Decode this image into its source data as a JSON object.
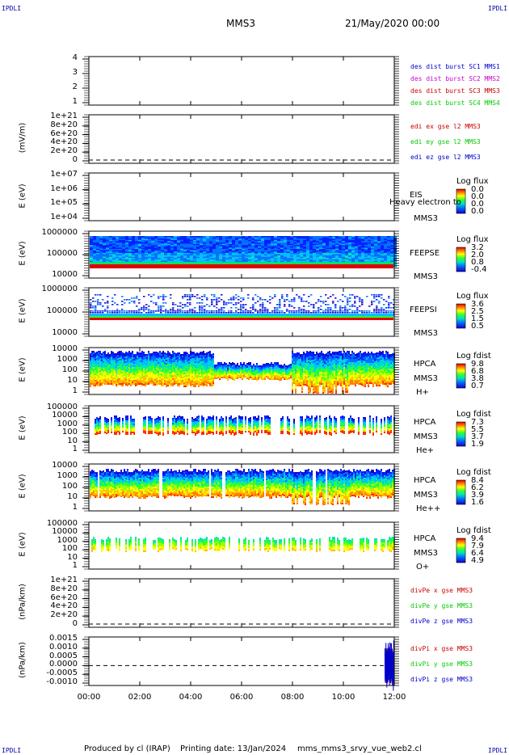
{
  "header": {
    "corner_tl": "IPDLI",
    "corner_tr": "IPDLI",
    "corner_bl": "IPDLI",
    "corner_br": "IPDLI",
    "spacecraft": "MMS3",
    "datetime": "21/May/2020 00:00"
  },
  "footer": {
    "produced": "Produced by cl (IRAP)",
    "printing": "Printing date: 13/Jan/2024",
    "script": "mms_mms3_srvy_vue_web2.cl"
  },
  "colors": {
    "black": "#000000",
    "blue": "#0000cc",
    "magenta": "#cc00cc",
    "red": "#cc0000",
    "green": "#00cc00"
  },
  "chart_data": [
    {
      "type": "line",
      "panel": "des_dist_burst",
      "ylabel": "",
      "yticks": [
        "4",
        "3",
        "2",
        "1"
      ],
      "ylim": [
        0.5,
        4.5
      ],
      "legend": [
        {
          "text": "des dist burst SC1 MMS1",
          "color": "#0000cc"
        },
        {
          "text": "des dist burst SC2 MMS2",
          "color": "#cc00cc"
        },
        {
          "text": "des dist burst SC3 MMS3",
          "color": "#cc0000"
        },
        {
          "text": "des dist burst SC4 MMS4",
          "color": "#00cc00"
        }
      ],
      "series": []
    },
    {
      "type": "line",
      "panel": "edi",
      "ylabel": "(mV/m)",
      "yticks": [
        "1e+21",
        "8e+20",
        "6e+20",
        "4e+20",
        "2e+20",
        "0"
      ],
      "ylim": [
        0,
        1e+21
      ],
      "legend": [
        {
          "text": "edi ex gse l2 MMS3",
          "color": "#cc0000"
        },
        {
          "text": "edi ey gse l2 MMS3",
          "color": "#00cc00"
        },
        {
          "text": "edi ez gse l2 MMS3",
          "color": "#0000cc"
        }
      ],
      "series": []
    },
    {
      "type": "heatmap",
      "panel": "eis",
      "ylabel": "E (eV)",
      "yticks": [
        "1e+07",
        "1e+06",
        "1e+05",
        "1e+04"
      ],
      "scale": "log",
      "ylim": [
        10000.0,
        10000000.0
      ],
      "instrument": "EIS",
      "sc": "MMS3",
      "overlay": "Heavy electron to",
      "cbar_title": "Log flux",
      "cbar_values": [
        "0.0",
        "0.0",
        "0.0",
        "0.0"
      ]
    },
    {
      "type": "heatmap",
      "panel": "feepse",
      "ylabel": "E (eV)",
      "yticks": [
        "1000000",
        "100000",
        "10000"
      ],
      "scale": "log",
      "ylim": [
        10000.0,
        1000000.0
      ],
      "instrument": "FEEPSE",
      "sc": "MMS3",
      "cbar_title": "Log flux",
      "cbar_values": [
        "3.2",
        "2.0",
        "0.8",
        "-0.4"
      ]
    },
    {
      "type": "heatmap",
      "panel": "feepsi",
      "ylabel": "E (eV)",
      "yticks": [
        "1000000",
        "100000",
        "10000"
      ],
      "scale": "log",
      "ylim": [
        10000.0,
        1000000.0
      ],
      "instrument": "FEEPSI",
      "sc": "MMS3",
      "cbar_title": "Log flux",
      "cbar_values": [
        "3.6",
        "2.5",
        "1.5",
        "0.5"
      ]
    },
    {
      "type": "heatmap",
      "panel": "hpca_h",
      "ylabel": "E (eV)",
      "yticks": [
        "10000",
        "1000",
        "100",
        "10",
        "1"
      ],
      "scale": "log",
      "ylim": [
        1,
        100000.0
      ],
      "instrument": "HPCA",
      "sc": "MMS3",
      "species": "H+",
      "cbar_title": "Log fdist",
      "cbar_values": [
        "9.8",
        "6.8",
        "3.8",
        "0.7"
      ]
    },
    {
      "type": "heatmap",
      "panel": "hpca_he",
      "ylabel": "E (eV)",
      "yticks": [
        "100000",
        "10000",
        "1000",
        "100",
        "10",
        "1"
      ],
      "scale": "log",
      "ylim": [
        1,
        100000.0
      ],
      "instrument": "HPCA",
      "sc": "MMS3",
      "species": "He+",
      "cbar_title": "Log fdist",
      "cbar_values": [
        "7.3",
        "5.5",
        "3.7",
        "1.9"
      ]
    },
    {
      "type": "heatmap",
      "panel": "hpca_hepp",
      "ylabel": "E (eV)",
      "yticks": [
        "10000",
        "1000",
        "100",
        "10",
        "1"
      ],
      "scale": "log",
      "ylim": [
        1,
        100000.0
      ],
      "instrument": "HPCA",
      "sc": "MMS3",
      "species": "He++",
      "cbar_title": "Log fdist",
      "cbar_values": [
        "8.4",
        "6.2",
        "3.9",
        "1.6"
      ]
    },
    {
      "type": "heatmap",
      "panel": "hpca_o",
      "ylabel": "E (eV)",
      "yticks": [
        "100000",
        "10000",
        "1000",
        "100",
        "10",
        "1"
      ],
      "scale": "log",
      "ylim": [
        1,
        100000.0
      ],
      "instrument": "HPCA",
      "sc": "MMS3",
      "species": "O+",
      "cbar_title": "Log fdist",
      "cbar_values": [
        "9.4",
        "7.9",
        "6.4",
        "4.9"
      ]
    },
    {
      "type": "line",
      "panel": "divpe",
      "ylabel": "(nPa/km)",
      "yticks": [
        "1e+21",
        "8e+20",
        "6e+20",
        "4e+20",
        "2e+20",
        "0"
      ],
      "ylim": [
        0,
        1e+21
      ],
      "legend": [
        {
          "text": "divPe x gse MMS3",
          "color": "#cc0000"
        },
        {
          "text": "divPe y gse MMS3",
          "color": "#00cc00"
        },
        {
          "text": "divPe z gse MMS3",
          "color": "#0000cc"
        }
      ],
      "series": []
    },
    {
      "type": "line",
      "panel": "divpi",
      "ylabel": "(nPa/km)",
      "yticks": [
        "0.0015",
        "0.0010",
        "0.0005",
        "0.0000",
        "-0.0005",
        "-0.0010"
      ],
      "ylim": [
        -0.00115,
        0.00165
      ],
      "legend": [
        {
          "text": "divPi x gse MMS3",
          "color": "#cc0000"
        },
        {
          "text": "divPi y gse MMS3",
          "color": "#00cc00"
        },
        {
          "text": "divPi z gse MMS3",
          "color": "#0000cc"
        }
      ],
      "series": [
        {
          "name": "divPi x gse MMS3",
          "x": [
            "11:40",
            "11:45",
            "11:50",
            "11:55"
          ],
          "values": [
            0.0012,
            -0.0004,
            0.0006,
            -0.0002
          ]
        },
        {
          "name": "divPi y gse MMS3",
          "x": [
            "11:40",
            "11:45",
            "11:50",
            "11:55"
          ],
          "values": [
            0.0009,
            -0.0003,
            0.0004,
            0.0001
          ]
        },
        {
          "name": "divPi z gse MMS3",
          "x": [
            "11:40",
            "11:45",
            "11:50",
            "11:55"
          ],
          "values": [
            0.0015,
            -0.0007,
            0.001,
            -0.0003
          ]
        }
      ]
    }
  ],
  "xaxis": {
    "ticks": [
      "00:00",
      "02:00",
      "04:00",
      "06:00",
      "08:00",
      "10:00",
      "12:00"
    ],
    "range": [
      "00:00",
      "12:00"
    ]
  }
}
